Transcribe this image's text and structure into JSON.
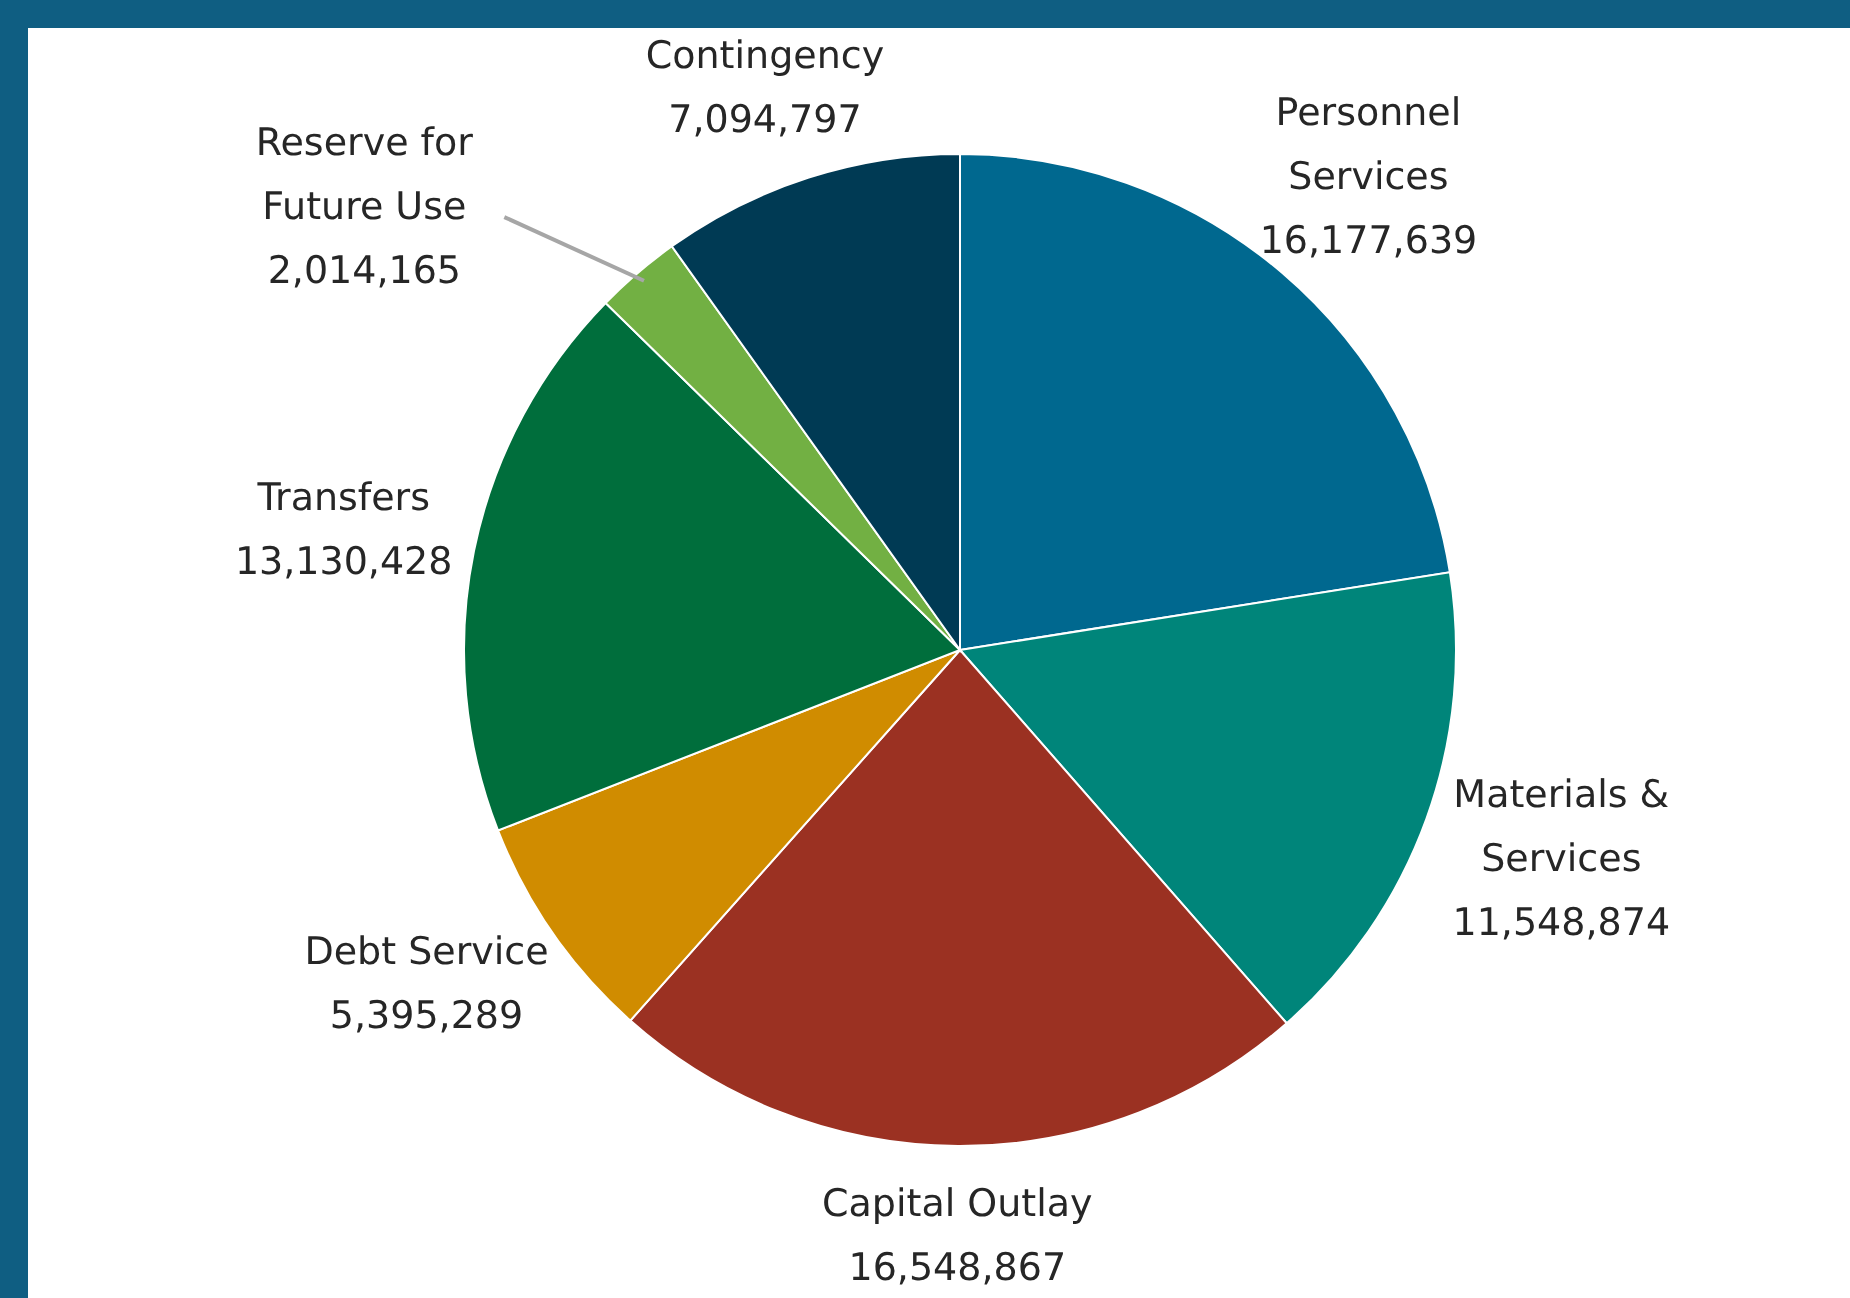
{
  "chart_data": {
    "type": "pie",
    "categories": [
      "Personnel Services",
      "Materials & Services",
      "Capital Outlay",
      "Debt Service",
      "Transfers",
      "Reserve for Future Use",
      "Contingency"
    ],
    "values": [
      16177639,
      11548874,
      16548867,
      5395289,
      13130428,
      2014165,
      7094797
    ],
    "value_labels": [
      "16,177,639",
      "11,548,874",
      "16,548,867",
      "5,395,289",
      "13,130,428",
      "2,014,165",
      "7,094,797"
    ],
    "colors": [
      "#00688f",
      "#00857a",
      "#9b3122",
      "#d08c00",
      "#006e3c",
      "#72b043",
      "#003a54"
    ],
    "legend": false
  }
}
